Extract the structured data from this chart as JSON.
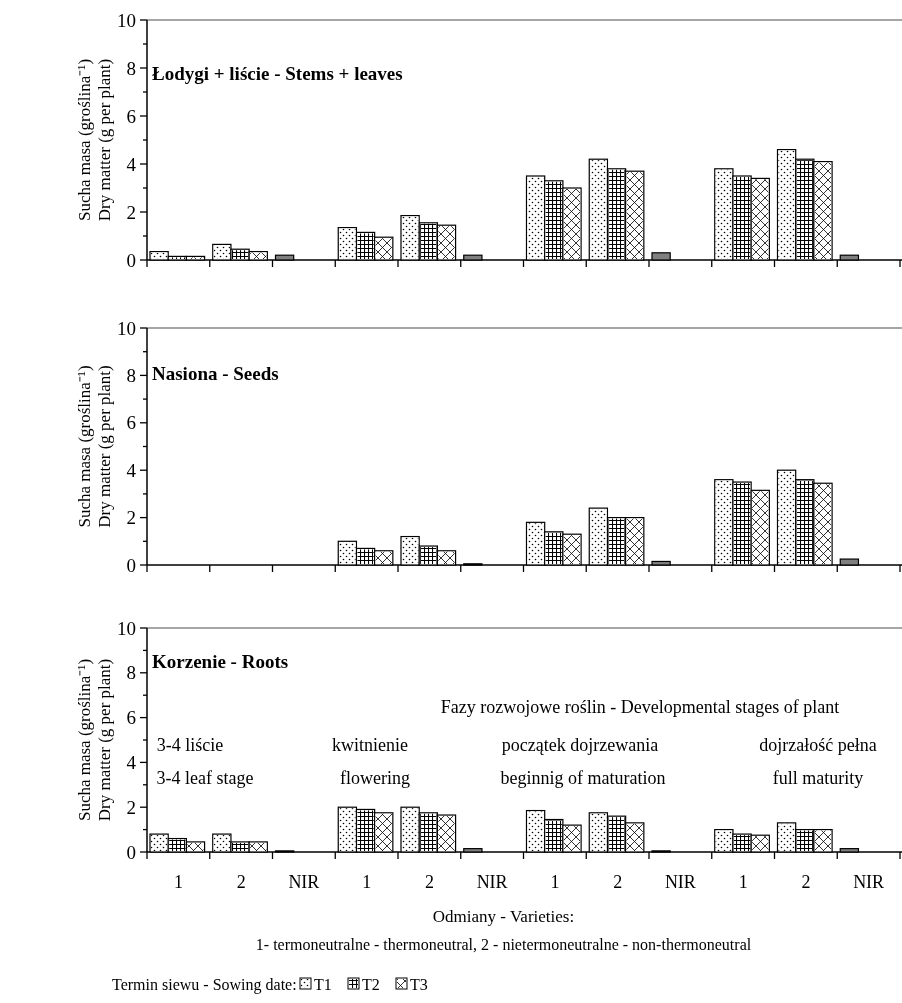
{
  "chart_data": [
    {
      "type": "bar",
      "title": "Łodygi + liście - Stems + leaves",
      "ylabel": "Sucha masa (groślina⁻¹)\nDry matter (g per plant)",
      "categories": [
        null,
        null,
        null,
        null,
        null,
        null,
        null,
        null,
        null,
        null,
        null,
        null
      ],
      "ylim": [
        0,
        10
      ],
      "yticks": [
        0,
        {
          "value": 1,
          "label": null
        },
        2,
        {
          "value": 3,
          "label": null
        },
        4,
        {
          "value": 5,
          "label": null
        },
        6,
        {
          "value": 7,
          "label": null
        },
        8,
        {
          "value": 9,
          "label": null
        },
        10
      ],
      "tick_labels": "y",
      "series": [
        {
          "color": "#ffffff",
          "values": [
            0.35,
            0.65,
            null,
            1.35,
            1.85,
            null,
            3.5,
            4.2,
            null,
            3.8,
            4.6,
            null
          ]
        },
        {
          "color": "#ffffff",
          "values": [
            0.15,
            0.45,
            null,
            1.15,
            1.55,
            null,
            3.3,
            3.8,
            null,
            3.5,
            4.2,
            null
          ]
        },
        {
          "color": "#ffffff",
          "values": [
            0.15,
            0.35,
            null,
            0.95,
            1.45,
            null,
            3.0,
            3.7,
            null,
            3.4,
            4.1,
            null
          ]
        },
        {
          "color": "#808080",
          "values": [
            null,
            null,
            0.2,
            null,
            null,
            0.2,
            null,
            null,
            0.3,
            null,
            null,
            0.2
          ]
        }
      ]
    },
    {
      "type": "bar",
      "title": "Nasiona - Seeds",
      "ylabel": "Sucha masa (groślina⁻¹)\nDry matter (g per plant)",
      "categories": [
        null,
        null,
        null,
        null,
        null,
        null,
        null,
        null,
        null,
        null,
        null,
        null
      ],
      "ylim": [
        0,
        10
      ],
      "yticks": [
        0,
        {
          "value": 1,
          "label": null
        },
        2,
        {
          "value": 3,
          "label": null
        },
        4,
        {
          "value": 5,
          "label": null
        },
        6,
        {
          "value": 7,
          "label": null
        },
        8,
        {
          "value": 9,
          "label": null
        },
        10
      ],
      "tick_labels": "y",
      "series": [
        {
          "color": "#ffffff",
          "values": [
            null,
            null,
            null,
            1.0,
            1.2,
            null,
            1.8,
            2.4,
            null,
            3.6,
            4.0,
            null
          ]
        },
        {
          "color": "#ffffff",
          "values": [
            null,
            null,
            null,
            0.7,
            0.8,
            null,
            1.4,
            2.0,
            null,
            3.5,
            3.6,
            null
          ]
        },
        {
          "color": "#ffffff",
          "values": [
            null,
            null,
            null,
            0.6,
            0.6,
            null,
            1.3,
            2.0,
            null,
            3.15,
            3.45,
            null
          ]
        },
        {
          "color": "#808080",
          "values": [
            null,
            null,
            null,
            null,
            null,
            0.05,
            null,
            null,
            0.15,
            null,
            null,
            0.25
          ]
        }
      ]
    },
    {
      "type": "bar",
      "title": "Korzenie - Roots",
      "ylabel": "Sucha masa (groślina⁻¹)\nDry matter (g per plant)",
      "xlabel": "Odmiany - Varieties:",
      "legend_title": "Termin siewu - Sowing date:",
      "legend": "bottom",
      "categories": [
        "1",
        "2",
        "NIR",
        "1",
        "2",
        "NIR",
        "1",
        "2",
        "NIR",
        "1",
        "2",
        "NIR"
      ],
      "ylim": [
        0,
        10
      ],
      "yticks": [
        0,
        {
          "value": 1,
          "label": null
        },
        2,
        {
          "value": 3,
          "label": null
        },
        4,
        {
          "value": 5,
          "label": null
        },
        6,
        {
          "value": 7,
          "label": null
        },
        8,
        {
          "value": 9,
          "label": null
        },
        10
      ],
      "annotations": [
        "Fazy rozwojowe roślin - Developmental stages of plant",
        "3-4 liście",
        "kwitnienie",
        "początek dojrzewania",
        "dojrzałość pełna",
        "3-4 leaf stage",
        "flowering",
        "beginnig of maturation",
        "full maturity",
        "1- termoneutralne - thermoneutral, 2 - nietermoneutralne - non-thermoneutral"
      ],
      "series": [
        {
          "name": "T1",
          "color": "#ffffff",
          "values": [
            0.8,
            0.8,
            null,
            2.0,
            2.0,
            null,
            1.85,
            1.75,
            null,
            1.0,
            1.3,
            null
          ]
        },
        {
          "name": "T2",
          "color": "#ffffff",
          "values": [
            0.6,
            0.45,
            null,
            1.9,
            1.75,
            null,
            1.45,
            1.6,
            null,
            0.8,
            1.0,
            null
          ]
        },
        {
          "name": "T3",
          "color": "#ffffff",
          "values": [
            0.45,
            0.45,
            null,
            1.75,
            1.65,
            null,
            1.2,
            1.3,
            null,
            0.75,
            1.0,
            null
          ]
        },
        {
          "color": "#808080",
          "values": [
            null,
            null,
            0.05,
            null,
            null,
            0.15,
            null,
            null,
            0.05,
            null,
            null,
            0.15
          ]
        }
      ]
    }
  ]
}
